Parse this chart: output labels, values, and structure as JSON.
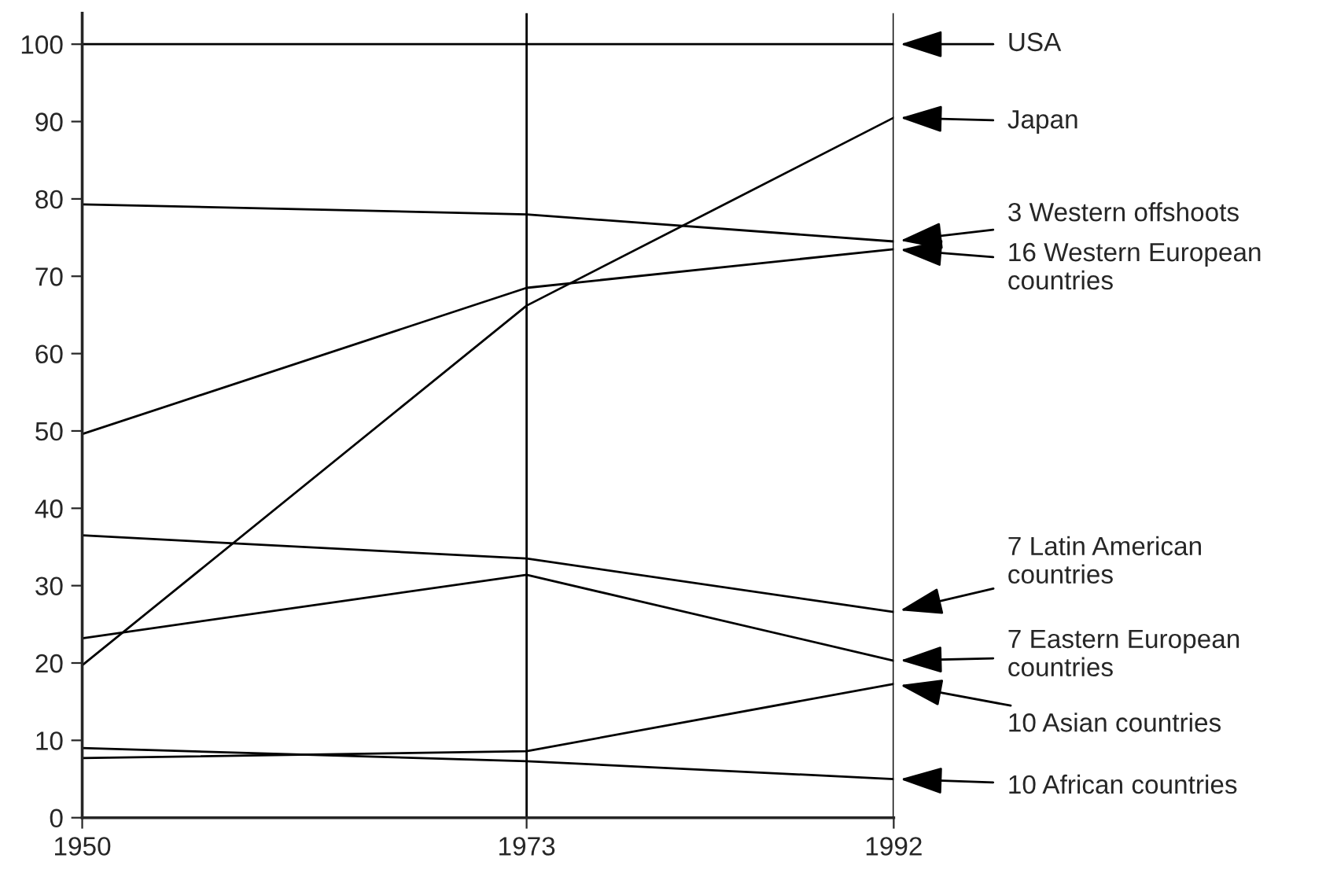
{
  "chart_data": {
    "type": "line",
    "x": [
      1950,
      1973,
      1992
    ],
    "series": [
      {
        "name": "USA",
        "color": "#000000",
        "values": [
          100,
          100,
          100
        ]
      },
      {
        "name": "Japan",
        "color": "#000000",
        "values": [
          19.7,
          66.2,
          90.5
        ]
      },
      {
        "name": "3 Western offshoots",
        "color": "#000000",
        "values": [
          79.3,
          78.0,
          74.5
        ]
      },
      {
        "name": "16 Western European\ncountries",
        "color": "#000000",
        "values": [
          49.6,
          68.5,
          73.5
        ]
      },
      {
        "name": "7 Latin American\ncountries",
        "color": "#000000",
        "values": [
          36.5,
          33.5,
          26.6
        ]
      },
      {
        "name": "7 Eastern European\ncountries",
        "color": "#000000",
        "values": [
          23.2,
          31.4,
          20.3
        ]
      },
      {
        "name": "10 Asian countries",
        "color": "#000000",
        "values": [
          7.7,
          8.6,
          17.3
        ]
      },
      {
        "name": "10 African countries",
        "color": "#000000",
        "values": [
          9.0,
          7.3,
          5.0
        ]
      }
    ],
    "xlim": [
      1950,
      1992
    ],
    "xticks": [
      1950,
      1973,
      1992
    ],
    "ylim": [
      0,
      104
    ],
    "yticks": [
      0,
      10,
      20,
      30,
      40,
      50,
      60,
      70,
      80,
      90,
      100
    ],
    "ref_lines": [
      {
        "axis": "x",
        "value": 1973
      },
      {
        "axis": "x",
        "value": 1992
      }
    ],
    "legend": "right",
    "marker": "none",
    "line_style": "solid"
  }
}
